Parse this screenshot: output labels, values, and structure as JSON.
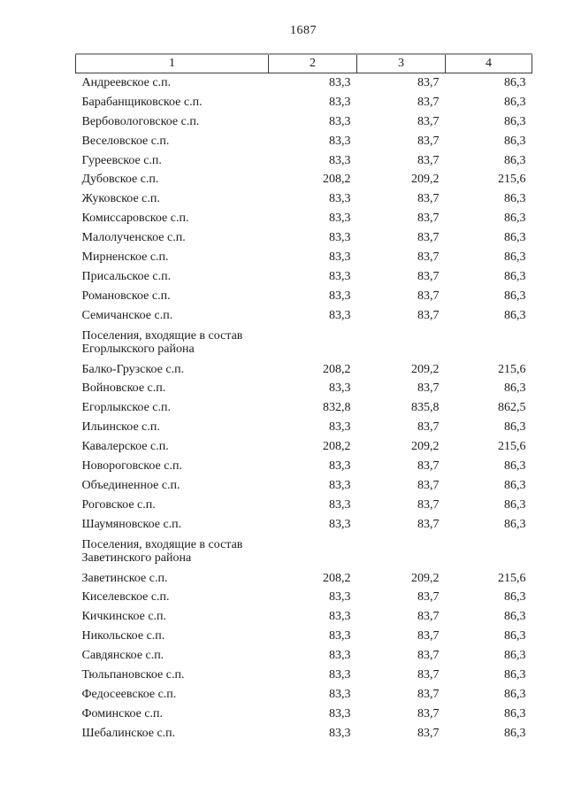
{
  "page": {
    "number": "1687"
  },
  "table": {
    "columns": [
      "1",
      "2",
      "3",
      "4"
    ],
    "rows": [
      {
        "type": "data",
        "name": "Андреевское с.п.",
        "values": [
          "83,3",
          "83,7",
          "86,3"
        ]
      },
      {
        "type": "data",
        "name": "Барабанщиковское с.п.",
        "values": [
          "83,3",
          "83,7",
          "86,3"
        ]
      },
      {
        "type": "data",
        "name": "Вербовологовское с.п.",
        "values": [
          "83,3",
          "83,7",
          "86,3"
        ]
      },
      {
        "type": "data",
        "name": "Веселовское с.п.",
        "values": [
          "83,3",
          "83,7",
          "86,3"
        ]
      },
      {
        "type": "data",
        "name": "Гуреевское с.п.",
        "values": [
          "83,3",
          "83,7",
          "86,3"
        ]
      },
      {
        "type": "data",
        "name": "Дубовское с.п.",
        "values": [
          "208,2",
          "209,2",
          "215,6"
        ]
      },
      {
        "type": "data",
        "name": "Жуковское с.п.",
        "values": [
          "83,3",
          "83,7",
          "86,3"
        ]
      },
      {
        "type": "data",
        "name": "Комиссаровское с.п.",
        "values": [
          "83,3",
          "83,7",
          "86,3"
        ]
      },
      {
        "type": "data",
        "name": "Малолученское с.п.",
        "values": [
          "83,3",
          "83,7",
          "86,3"
        ]
      },
      {
        "type": "data",
        "name": "Мирненское с.п.",
        "values": [
          "83,3",
          "83,7",
          "86,3"
        ]
      },
      {
        "type": "data",
        "name": "Присальское с.п.",
        "values": [
          "83,3",
          "83,7",
          "86,3"
        ]
      },
      {
        "type": "data",
        "name": "Романовское с.п.",
        "values": [
          "83,3",
          "83,7",
          "86,3"
        ]
      },
      {
        "type": "data",
        "name": "Семичанское с.п.",
        "values": [
          "83,3",
          "83,7",
          "86,3"
        ]
      },
      {
        "type": "section",
        "name": "Поселения, входящие в состав Егорлыкского района"
      },
      {
        "type": "data",
        "name": "Балко-Грузское с.п.",
        "values": [
          "208,2",
          "209,2",
          "215,6"
        ]
      },
      {
        "type": "data",
        "name": "Войновское с.п.",
        "values": [
          "83,3",
          "83,7",
          "86,3"
        ]
      },
      {
        "type": "data",
        "name": "Егорлыкское с.п.",
        "values": [
          "832,8",
          "835,8",
          "862,5"
        ]
      },
      {
        "type": "data",
        "name": "Ильинское с.п.",
        "values": [
          "83,3",
          "83,7",
          "86,3"
        ]
      },
      {
        "type": "data",
        "name": "Кавалерское с.п.",
        "values": [
          "208,2",
          "209,2",
          "215,6"
        ]
      },
      {
        "type": "data",
        "name": "Новороговское с.п.",
        "values": [
          "83,3",
          "83,7",
          "86,3"
        ]
      },
      {
        "type": "data",
        "name": "Объединенное с.п.",
        "values": [
          "83,3",
          "83,7",
          "86,3"
        ]
      },
      {
        "type": "data",
        "name": "Роговское с.п.",
        "values": [
          "83,3",
          "83,7",
          "86,3"
        ]
      },
      {
        "type": "data",
        "name": "Шаумяновское с.п.",
        "values": [
          "83,3",
          "83,7",
          "86,3"
        ]
      },
      {
        "type": "section",
        "name": "Поселения, входящие в состав Заветинского района"
      },
      {
        "type": "data",
        "name": "Заветинское с.п.",
        "values": [
          "208,2",
          "209,2",
          "215,6"
        ]
      },
      {
        "type": "data",
        "name": "Киселевское с.п.",
        "values": [
          "83,3",
          "83,7",
          "86,3"
        ]
      },
      {
        "type": "data",
        "name": "Кичкинское с.п.",
        "values": [
          "83,3",
          "83,7",
          "86,3"
        ]
      },
      {
        "type": "data",
        "name": "Никольское с.п.",
        "values": [
          "83,3",
          "83,7",
          "86,3"
        ]
      },
      {
        "type": "data",
        "name": "Савдянское с.п.",
        "values": [
          "83,3",
          "83,7",
          "86,3"
        ]
      },
      {
        "type": "data",
        "name": "Тюльпановское с.п.",
        "values": [
          "83,3",
          "83,7",
          "86,3"
        ]
      },
      {
        "type": "data",
        "name": "Федосеевское с.п.",
        "values": [
          "83,3",
          "83,7",
          "86,3"
        ]
      },
      {
        "type": "data",
        "name": "Фоминское с.п.",
        "values": [
          "83,3",
          "83,7",
          "86,3"
        ]
      },
      {
        "type": "data",
        "name": "Шебалинское с.п.",
        "values": [
          "83,3",
          "83,7",
          "86,3"
        ]
      }
    ]
  }
}
